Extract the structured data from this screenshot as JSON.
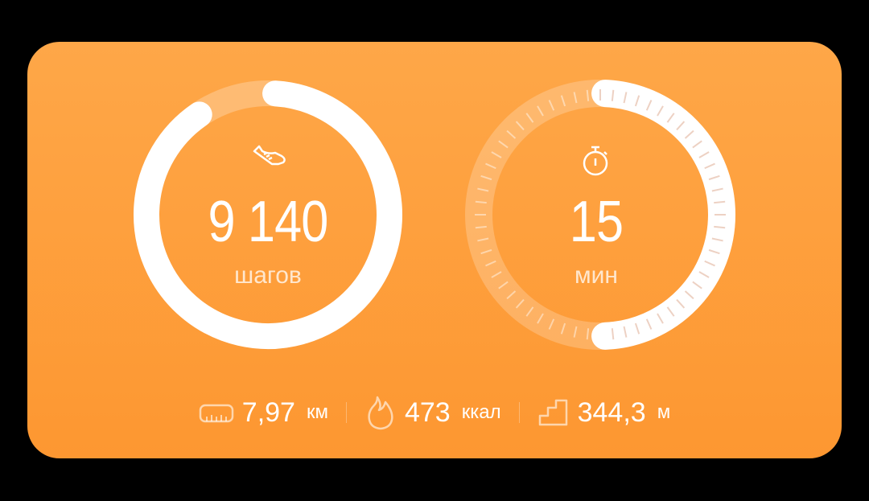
{
  "steps": {
    "value": "9 140",
    "unit": "шагов",
    "progress_percent": 91.4,
    "icon": "sneaker-icon"
  },
  "minutes": {
    "value": "15",
    "unit": "мин",
    "progress_percent": 50,
    "icon": "stopwatch-icon"
  },
  "stats": [
    {
      "icon": "ruler-icon",
      "value": "7,97",
      "unit": "км"
    },
    {
      "icon": "flame-icon",
      "value": "473",
      "unit": "ккал"
    },
    {
      "icon": "stairs-icon",
      "value": "344,3",
      "unit": "м"
    }
  ],
  "colors": {
    "card_top": "#fea748",
    "card_bottom": "#fd9731",
    "ring": "#ffffff"
  }
}
